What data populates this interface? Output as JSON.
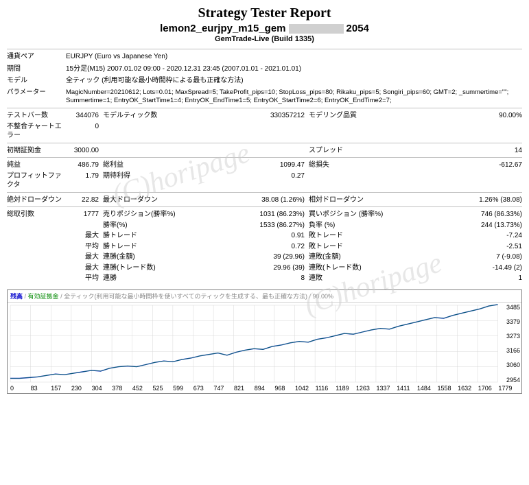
{
  "header": {
    "title": "Strategy Tester Report",
    "subtitle_pre": "lemon2_eurjpy_m15_gem",
    "subtitle_post": "2054",
    "build": "GemTrade-Live (Build 1335)",
    "watermark": "(C)horipage"
  },
  "info": {
    "pair_label": "通貨ペア",
    "pair": "EURJPY (Euro vs Japanese Yen)",
    "period_label": "期間",
    "period": "15分足(M15) 2007.01.02 09:00 - 2020.12.31 23:45 (2007.01.01 - 2021.01.01)",
    "model_label": "モデル",
    "model": "全ティック (利用可能な最小時間枠による最も正確な方法)",
    "param_label": "パラメーター",
    "param": "MagicNumber=20210612; Lots=0.01; MaxSpread=5; TakeProfit_pips=10; StopLoss_pips=80; Rikaku_pips=5; Songiri_pips=60; GMT=2; _summertime=\"\"; Summertime=1; EntryOK_StartTime1=4; EntryOK_EndTime1=5; EntryOK_StartTime2=6; EntryOK_EndTime2=7;"
  },
  "bars": {
    "testbar_l": "テストバー数",
    "testbar_v": "344076",
    "modeltick_l": "モデルティック数",
    "modeltick_v": "330357212",
    "quality_l": "モデリング品質",
    "quality_v": "90.00%",
    "mismatch_l": "不整合チャートエラー",
    "mismatch_v": "0"
  },
  "deposit": {
    "init_l": "初期証拠金",
    "init_v": "3000.00",
    "spread_l": "スプレッド",
    "spread_v": "14"
  },
  "profit": {
    "net_l": "純益",
    "net_v": "486.79",
    "gross_p_l": "総利益",
    "gross_p_v": "1099.47",
    "gross_l_l": "総損失",
    "gross_l_v": "-612.67",
    "pf_l": "プロフィットファクタ",
    "pf_v": "1.79",
    "exp_l": "期待利得",
    "exp_v": "0.27"
  },
  "dd": {
    "abs_l": "絶対ドローダウン",
    "abs_v": "22.82",
    "max_l": "最大ドローダウン",
    "max_v": "38.08 (1.26%)",
    "rel_l": "相対ドローダウン",
    "rel_v": "1.26% (38.08)"
  },
  "trades": {
    "total_l": "総取引数",
    "total_v": "1777",
    "sell_l": "売りポジション(勝率%)",
    "sell_v": "1031 (86.23%)",
    "buy_l": "買いポジション (勝率%)",
    "buy_v": "746 (86.33%)",
    "win_l": "勝率(%)",
    "win_v": "1533 (86.27%)",
    "lose_l": "負率 (%)",
    "lose_v": "244 (13.73%)",
    "max_lbl": "最大",
    "avg_lbl": "平均",
    "wtr_l": "勝トレード",
    "wtr_max": "0.91",
    "wtr_avg": "0.72",
    "ltr_l": "敗トレード",
    "ltr_max": "-7.24",
    "ltr_avg": "-2.51",
    "conw_amt_l": "連勝(金額)",
    "conw_amt_v": "39 (29.96)",
    "conl_amt_l": "連敗(金額)",
    "conl_amt_v": "7 (-9.08)",
    "conw_cnt_l": "連勝(トレード数)",
    "conw_cnt_v": "29.96 (39)",
    "conl_cnt_l": "連敗(トレード数)",
    "conl_cnt_v": "-14.49 (2)",
    "avg_conw_l": "連勝",
    "avg_conw_v": "8",
    "avg_conl_l": "連敗",
    "avg_conl_v": "1"
  },
  "chart": {
    "legend_balance": "残高",
    "legend_margin": "有効証拠金",
    "legend_method": "/ 全ティック(利用可能な最小時間枠を使いすべてのティックを生成する、最も正確な方法)",
    "legend_quality": "/ 90.00%",
    "xlabels": [
      "0",
      "83",
      "157",
      "230",
      "304",
      "378",
      "452",
      "525",
      "599",
      "673",
      "747",
      "821",
      "894",
      "968",
      "1042",
      "1116",
      "1189",
      "1263",
      "1337",
      "1411",
      "1484",
      "1558",
      "1632",
      "1706",
      "1779"
    ],
    "ylabels": [
      "3485",
      "3379",
      "3273",
      "3166",
      "3060",
      "2954"
    ],
    "line_color": "#1030c0",
    "grid_color": "#d8d8d8",
    "background": "#ffffff",
    "series_y": [
      2980,
      2980,
      2985,
      2990,
      3000,
      3010,
      3005,
      3015,
      3025,
      3035,
      3030,
      3050,
      3060,
      3065,
      3060,
      3075,
      3090,
      3100,
      3095,
      3110,
      3120,
      3135,
      3145,
      3155,
      3140,
      3160,
      3175,
      3185,
      3180,
      3200,
      3210,
      3225,
      3235,
      3230,
      3250,
      3260,
      3275,
      3290,
      3285,
      3300,
      3315,
      3325,
      3320,
      3340,
      3355,
      3370,
      3385,
      3400,
      3395,
      3415,
      3430,
      3445,
      3460,
      3480,
      3490
    ],
    "ymin": 2954,
    "ymax": 3485
  }
}
